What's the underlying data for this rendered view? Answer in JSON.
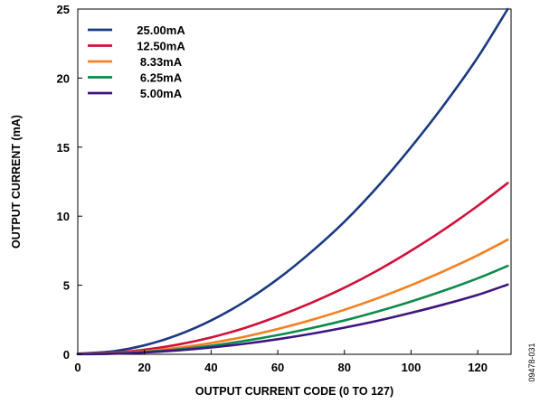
{
  "chart_data": {
    "type": "line",
    "xlabel": "OUTPUT CURRENT CODE (0 TO 127)",
    "ylabel": "OUTPUT CURRENT (mA)",
    "xlim": [
      0,
      130
    ],
    "ylim": [
      0,
      25
    ],
    "xticks": [
      "0",
      "20",
      "40",
      "60",
      "80",
      "100",
      "120"
    ],
    "yticks": [
      "0",
      "5",
      "10",
      "15",
      "20",
      "25"
    ],
    "grid": false,
    "legend_position": "top-left",
    "figure_code": "09478-031",
    "series": [
      {
        "name": "25.00mA",
        "color": "#1b3a82",
        "x": [
          0,
          10,
          20,
          30,
          40,
          50,
          60,
          70,
          80,
          90,
          100,
          110,
          120,
          129
        ],
        "y": [
          0.05,
          0.2,
          0.65,
          1.4,
          2.45,
          3.8,
          5.45,
          7.4,
          9.6,
          12.15,
          15.0,
          18.1,
          21.5,
          25.0
        ]
      },
      {
        "name": "12.50mA",
        "color": "#d0103a",
        "x": [
          0,
          10,
          20,
          30,
          40,
          50,
          60,
          70,
          80,
          90,
          100,
          110,
          120,
          129
        ],
        "y": [
          0.03,
          0.1,
          0.33,
          0.7,
          1.22,
          1.9,
          2.75,
          3.72,
          4.82,
          6.08,
          7.5,
          9.05,
          10.75,
          12.4
        ]
      },
      {
        "name": "8.33mA",
        "color": "#f47f20",
        "x": [
          0,
          10,
          20,
          30,
          40,
          50,
          60,
          70,
          80,
          90,
          100,
          110,
          120,
          129
        ],
        "y": [
          0.02,
          0.07,
          0.22,
          0.47,
          0.82,
          1.27,
          1.83,
          2.48,
          3.22,
          4.06,
          5.0,
          6.04,
          7.17,
          8.3
        ]
      },
      {
        "name": "6.25mA",
        "color": "#0f8a4a",
        "x": [
          0,
          10,
          20,
          30,
          40,
          50,
          60,
          70,
          80,
          90,
          100,
          110,
          120,
          129
        ],
        "y": [
          0.02,
          0.05,
          0.17,
          0.36,
          0.62,
          0.97,
          1.39,
          1.89,
          2.45,
          3.1,
          3.82,
          4.62,
          5.5,
          6.4
        ]
      },
      {
        "name": "5.00mA",
        "color": "#3d1680",
        "x": [
          0,
          10,
          20,
          30,
          40,
          50,
          60,
          70,
          80,
          90,
          100,
          110,
          120,
          129
        ],
        "y": [
          0.01,
          0.04,
          0.13,
          0.28,
          0.49,
          0.76,
          1.09,
          1.48,
          1.93,
          2.43,
          3.0,
          3.62,
          4.3,
          5.05
        ]
      }
    ]
  }
}
